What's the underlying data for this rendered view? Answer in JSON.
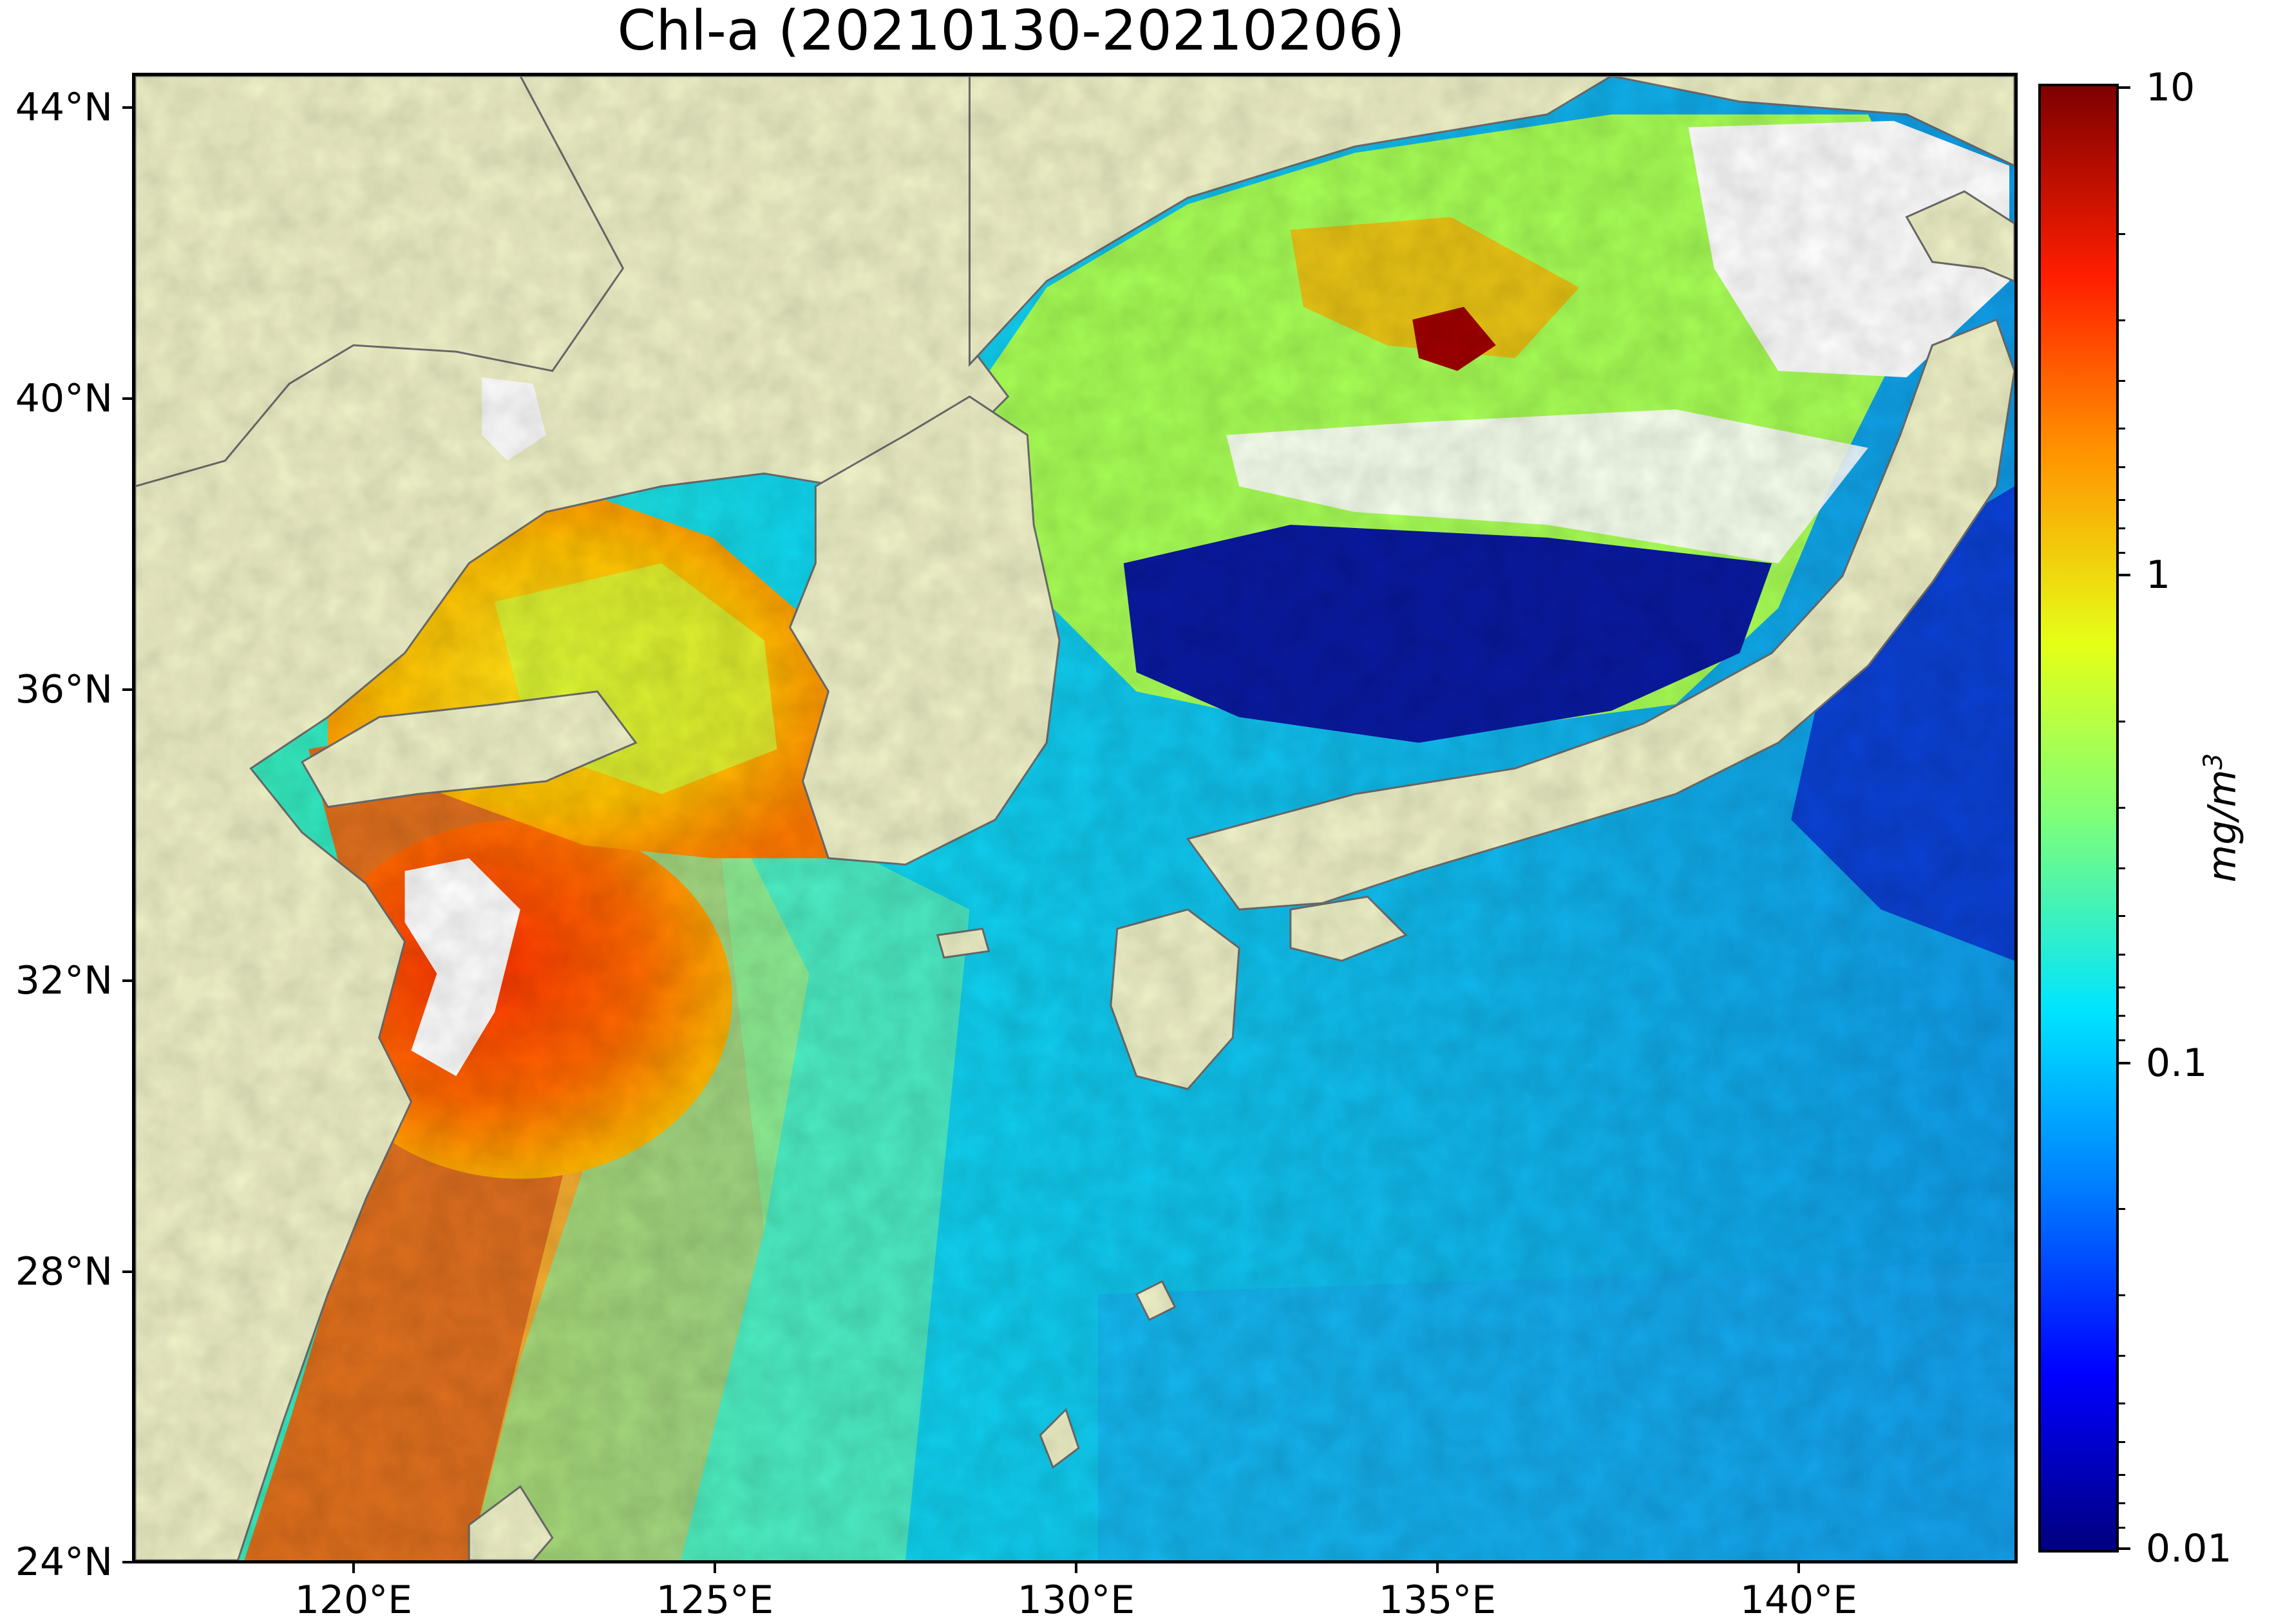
{
  "title": "Chl-a (20210130-20210206)",
  "colorbar": {
    "unit_label": "mg/m",
    "unit_superscript": "3",
    "scale": "log",
    "ticks": [
      "10",
      "1",
      "0.1",
      "0.01"
    ],
    "colormap": "jet"
  },
  "axes": {
    "lat_ticks": [
      "44°N",
      "40°N",
      "36°N",
      "32°N",
      "28°N",
      "24°N"
    ],
    "lon_ticks": [
      "120°E",
      "125°E",
      "130°E",
      "135°E",
      "140°E"
    ],
    "lat_range": [
      24,
      44.5
    ],
    "lon_range": [
      116.9,
      143
    ]
  },
  "colors": {
    "land": "#f0f2c8",
    "cloud_no_data": "#ffffff",
    "coastline": "#6e6e6e"
  }
}
